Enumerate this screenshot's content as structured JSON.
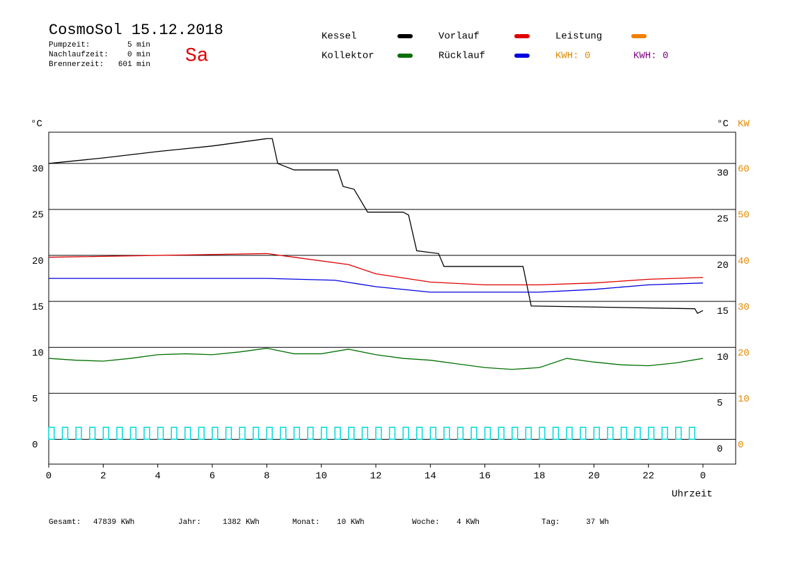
{
  "header": {
    "title": "CosmoSol 15.12.2018",
    "day": "Sa",
    "info": [
      {
        "label": "Pumpzeit:",
        "value": "5 min"
      },
      {
        "label": "Nachlaufzeit:",
        "value": "0 min"
      },
      {
        "label": "Brennerzeit:",
        "value": "601 min"
      }
    ],
    "kwh": [
      {
        "label": "KWH: 0",
        "color": "#e08a00"
      },
      {
        "label": "KWH: 0",
        "color": "#800080"
      }
    ]
  },
  "chart_data": {
    "type": "line",
    "y_unit": "°C",
    "y2_unit": "°C",
    "y2_unit_kw": "KW",
    "x_label": "Uhrzeit",
    "xlim": [
      0,
      25.2
    ],
    "xticks": [
      0,
      2,
      4,
      6,
      8,
      10,
      12,
      14,
      16,
      18,
      20,
      22,
      {
        "value": 24,
        "label": "0"
      }
    ],
    "ylim": [
      -2.7,
      33.4
    ],
    "yticks": [
      0,
      5,
      10,
      15,
      20,
      25,
      30
    ],
    "y2lim": [
      -5.4,
      66.8
    ],
    "y2ticks": [
      0,
      10,
      20,
      30,
      40,
      50,
      60
    ],
    "grid": true,
    "series": [
      {
        "name": "Kessel",
        "color": "#000000",
        "x": [
          0,
          2,
          4,
          6,
          8,
          8.2,
          8.4,
          9,
          10.6,
          10.8,
          11.2,
          11.7,
          13,
          13.2,
          13.5,
          14.3,
          14.5,
          17.4,
          17.7,
          23.7,
          23.8,
          24
        ],
        "values": [
          30.0,
          30.6,
          31.3,
          31.9,
          32.7,
          32.7,
          30.0,
          29.3,
          29.3,
          27.5,
          27.2,
          24.7,
          24.7,
          24.4,
          20.5,
          20.2,
          18.8,
          18.8,
          14.5,
          14.2,
          13.7,
          14.0
        ]
      },
      {
        "name": "Vorlauf",
        "color": "#e00000",
        "x": [
          0,
          8,
          9,
          11,
          12,
          14,
          16,
          18,
          20,
          22,
          24
        ],
        "values": [
          19.8,
          20.2,
          19.8,
          19.0,
          18.0,
          17.1,
          16.8,
          16.8,
          17.0,
          17.4,
          17.6
        ]
      },
      {
        "name": "Leistung",
        "color": "#f08000",
        "x": [],
        "values": []
      },
      {
        "name": "Kollektor",
        "color": "#007000",
        "x": [
          0,
          1,
          2,
          3,
          4,
          5,
          6,
          7,
          8,
          9,
          10,
          11,
          12,
          13,
          14,
          15,
          16,
          17,
          18,
          19,
          20,
          21,
          22,
          23,
          24
        ],
        "values": [
          8.8,
          8.6,
          8.5,
          8.8,
          9.2,
          9.3,
          9.2,
          9.5,
          9.9,
          9.3,
          9.3,
          9.8,
          9.2,
          8.8,
          8.6,
          8.2,
          7.8,
          7.6,
          7.8,
          8.8,
          8.4,
          8.1,
          8.0,
          8.3,
          8.8
        ]
      },
      {
        "name": "Rücklauf",
        "color": "#0000e0",
        "x": [
          0,
          8,
          10.5,
          12,
          14,
          18,
          20,
          22,
          24
        ],
        "values": [
          17.5,
          17.5,
          17.3,
          16.6,
          16.0,
          16.0,
          16.3,
          16.8,
          17.0
        ]
      }
    ],
    "pulses": {
      "color": "#00d8d8",
      "height": 1.3,
      "width": 0.2,
      "x": [
        0,
        0.5,
        1,
        1.5,
        2,
        2.5,
        3,
        3.5,
        4,
        4.5,
        5,
        5.5,
        6,
        6.5,
        7,
        7.5,
        8,
        8.5,
        9,
        9.5,
        10,
        10.5,
        11,
        11.5,
        12,
        12.5,
        13,
        13.5,
        14,
        14.5,
        15,
        15.5,
        16,
        16.5,
        17,
        17.5,
        18,
        18.5,
        19,
        19.5,
        20,
        20.5,
        21,
        21.5,
        22,
        22.5,
        23,
        23.5
      ]
    }
  },
  "footer": [
    {
      "label": "Gesamt:",
      "value": "47839 KWh"
    },
    {
      "label": "Jahr:",
      "value": "1382 KWh"
    },
    {
      "label": "Monat:",
      "value": "10 KWh"
    },
    {
      "label": "Woche:",
      "value": "4 KWh"
    },
    {
      "label": "Tag:",
      "value": "37 Wh"
    }
  ]
}
